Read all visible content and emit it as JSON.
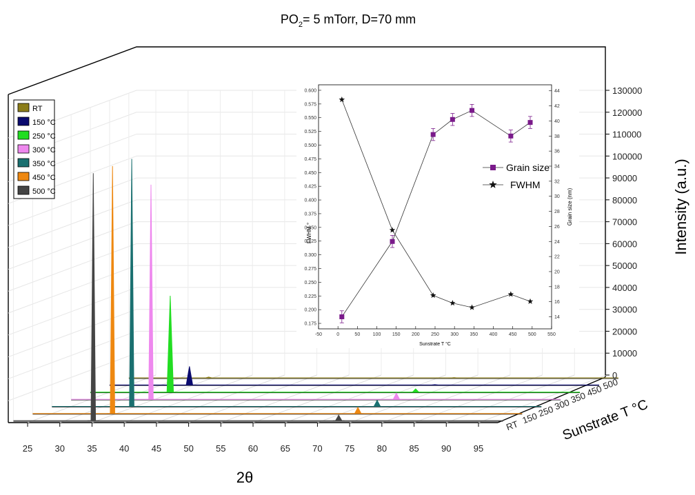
{
  "chart_data": [
    {
      "type": "line",
      "title_main": "PO",
      "title_sub": "2",
      "title_rest": "= 5 mTorr, D=70 mm",
      "xlabel": "2θ",
      "ylabel": "Intensity (a.u.)",
      "zlabel": "Sunstrate T °C",
      "x_ticks": [
        "25",
        "30",
        "35",
        "40",
        "45",
        "50",
        "55",
        "60",
        "65",
        "70",
        "75",
        "80",
        "85",
        "90",
        "95"
      ],
      "xlim": [
        22,
        98
      ],
      "y_ticks": [
        "0",
        "10000",
        "20000",
        "30000",
        "40000",
        "50000",
        "60000",
        "70000",
        "80000",
        "90000",
        "100000",
        "110000",
        "120000",
        "130000"
      ],
      "ylim": [
        0,
        135000
      ],
      "z_ticks": [
        "RT",
        "150",
        "250",
        "300",
        "350",
        "450",
        "500"
      ],
      "legend_position": "top-left",
      "series": [
        {
          "name": "RT",
          "color": "#8b7d1a",
          "peaks": [
            {
              "x": 34.4,
              "y": 400
            },
            {
              "x": 72.5,
              "y": 150
            }
          ]
        },
        {
          "name": "150 °C",
          "color": "#0a0a6e",
          "peaks": [
            {
              "x": 34.4,
              "y": 8500
            },
            {
              "x": 72.5,
              "y": 200
            }
          ]
        },
        {
          "name": "250 °C",
          "color": "#22dd22",
          "peaks": [
            {
              "x": 34.4,
              "y": 44000
            },
            {
              "x": 72.5,
              "y": 1500
            }
          ]
        },
        {
          "name": "300 °C",
          "color": "#ee88ee",
          "peaks": [
            {
              "x": 34.4,
              "y": 98000
            },
            {
              "x": 72.5,
              "y": 2800
            }
          ]
        },
        {
          "name": "350 °C",
          "color": "#1a7070",
          "peaks": [
            {
              "x": 34.4,
              "y": 113000
            },
            {
              "x": 72.5,
              "y": 2800
            }
          ]
        },
        {
          "name": "450 °C",
          "color": "#ee8811",
          "peaks": [
            {
              "x": 34.4,
              "y": 113000
            },
            {
              "x": 72.5,
              "y": 2800
            }
          ]
        },
        {
          "name": "500 °C",
          "color": "#444444",
          "peaks": [
            {
              "x": 34.4,
              "y": 113000
            },
            {
              "x": 72.5,
              "y": 2500
            }
          ]
        }
      ]
    },
    {
      "type": "line",
      "xlabel": "Sunstrate T °C",
      "ylabel_left": "FWHM °",
      "ylabel_right": "Grain size (nm)",
      "x_ticks": [
        "-50",
        "0",
        "50",
        "100",
        "150",
        "200",
        "250",
        "300",
        "350",
        "400",
        "450",
        "500",
        "550"
      ],
      "xlim": [
        -50,
        550
      ],
      "y_left_ticks": [
        "0.600",
        "0.575",
        "0.550",
        "0.525",
        "0.500",
        "0.475",
        "0.450",
        "0.425",
        "0.400",
        "0.375",
        "0.350",
        "0.325",
        "0.300",
        "0.275",
        "0.250",
        "0.225",
        "0.200",
        "0.175"
      ],
      "ylim_left": [
        0.165,
        0.61
      ],
      "y_right_ticks": [
        "44",
        "42",
        "40",
        "38",
        "36",
        "34",
        "32",
        "30",
        "28",
        "26",
        "24",
        "22",
        "20",
        "18",
        "16",
        "14"
      ],
      "ylim_right": [
        12.4,
        44.8
      ],
      "legend_position": "right",
      "series": [
        {
          "name": "Grain size",
          "color": "#7a1a8a",
          "marker": "square",
          "axis": "right",
          "x": [
            10,
            140,
            245,
            295,
            345,
            445,
            495
          ],
          "y": [
            14.0,
            24.0,
            38.2,
            40.2,
            41.4,
            38.0,
            39.8
          ],
          "err": [
            0.8,
            0.8,
            0.8,
            0.8,
            0.8,
            0.8,
            0.8
          ]
        },
        {
          "name": "FWHM",
          "color": "#111111",
          "marker": "star",
          "axis": "left",
          "x": [
            10,
            140,
            245,
            295,
            345,
            445,
            495
          ],
          "y": [
            0.583,
            0.345,
            0.226,
            0.212,
            0.204,
            0.228,
            0.215
          ]
        }
      ]
    }
  ]
}
